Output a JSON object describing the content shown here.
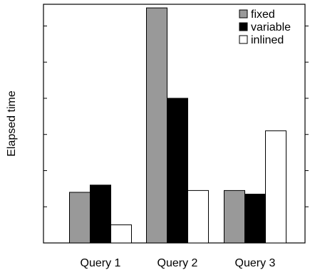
{
  "chart_data": {
    "type": "bar",
    "title": "",
    "xlabel": "",
    "ylabel": "Elapsed time",
    "categories": [
      "Query 1",
      "Query 2",
      "Query 3"
    ],
    "series": [
      {
        "name": "fixed",
        "values": [
          1.4,
          6.5,
          1.45
        ],
        "color": "#999999"
      },
      {
        "name": "variable",
        "values": [
          1.6,
          4.0,
          1.35
        ],
        "color": "#000000"
      },
      {
        "name": "inlined",
        "values": [
          0.5,
          1.45,
          3.1
        ],
        "color": "#ffffff"
      }
    ],
    "ylim": [
      0,
      6.6
    ],
    "yticks": [
      1,
      2,
      3,
      4,
      5,
      6
    ],
    "ytick_labels_shown": false,
    "grid": false,
    "legend_position": "top-right"
  }
}
